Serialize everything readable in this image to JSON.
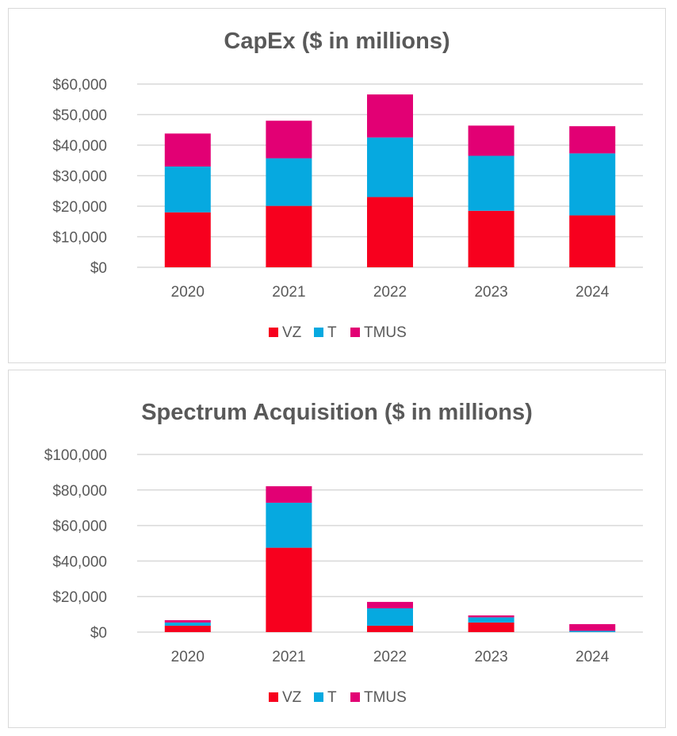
{
  "chart_data": [
    {
      "type": "bar",
      "stacked": true,
      "title": "CapEx ($ in millions)",
      "xlabel": "",
      "ylabel": "",
      "categories": [
        "2020",
        "2021",
        "2022",
        "2023",
        "2024"
      ],
      "ylim": [
        0,
        60000
      ],
      "yticks": [
        0,
        10000,
        20000,
        30000,
        40000,
        50000,
        60000
      ],
      "ytick_labels": [
        "$0",
        "$10,000",
        "$20,000",
        "$30,000",
        "$40,000",
        "$50,000",
        "$60,000"
      ],
      "grid": true,
      "legend": "bottom",
      "series": [
        {
          "name": "VZ",
          "color": "#F7001E",
          "values": [
            18000,
            20100,
            23000,
            18500,
            17000
          ]
        },
        {
          "name": "T",
          "color": "#06A9E0",
          "values": [
            15000,
            15600,
            19500,
            18000,
            20300
          ]
        },
        {
          "name": "TMUS",
          "color": "#E20074",
          "values": [
            10800,
            12300,
            14100,
            9900,
            8900
          ]
        }
      ]
    },
    {
      "type": "bar",
      "stacked": true,
      "title": "Spectrum Acquisition ($ in millions)",
      "xlabel": "",
      "ylabel": "",
      "categories": [
        "2020",
        "2021",
        "2022",
        "2023",
        "2024"
      ],
      "ylim": [
        0,
        100000
      ],
      "yticks": [
        0,
        20000,
        40000,
        60000,
        80000,
        100000
      ],
      "ytick_labels": [
        "$0",
        "$20,000",
        "$40,000",
        "$60,000",
        "$80,000",
        "$100,000"
      ],
      "grid": true,
      "legend": "bottom",
      "series": [
        {
          "name": "VZ",
          "color": "#F7001E",
          "values": [
            3600,
            47500,
            3600,
            5400,
            0
          ]
        },
        {
          "name": "T",
          "color": "#06A9E0",
          "values": [
            1800,
            25300,
            9800,
            2900,
            700
          ]
        },
        {
          "name": "TMUS",
          "color": "#E20074",
          "values": [
            1300,
            9300,
            3600,
            1100,
            3800
          ]
        }
      ]
    }
  ]
}
